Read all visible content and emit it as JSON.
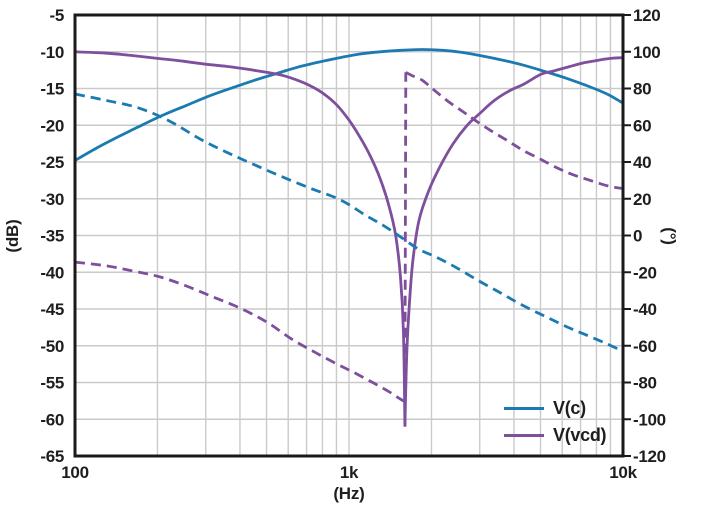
{
  "colors": {
    "blue": "#1b7ab1",
    "purple": "#7d4f9d",
    "grid": "#cacaca",
    "axis": "#1a1a1c",
    "text": "#1e1e20",
    "background": "#ffffff"
  },
  "legend": {
    "items": [
      {
        "label": "V(c)",
        "color": "#1b7ab1"
      },
      {
        "label": "V(vcd)",
        "color": "#7d4f9d"
      }
    ]
  },
  "chart_data": {
    "type": "line",
    "title": "",
    "grid": true,
    "legend_position": "lower right",
    "x_axis": {
      "label": "(Hz)",
      "scale": "log",
      "range": [
        100,
        10000
      ],
      "ticks": [
        100,
        1000,
        10000
      ],
      "tick_labels": [
        "100",
        "1k",
        "10k"
      ]
    },
    "y_left": {
      "label": "(dB)",
      "range": [
        -65,
        -5
      ],
      "ticks": [
        -5,
        -10,
        -15,
        -20,
        -25,
        -30,
        -35,
        -40,
        -45,
        -50,
        -55,
        -60,
        -65
      ],
      "tick_labels": [
        "-5",
        "-10",
        "-15",
        "-20",
        "-25",
        "-30",
        "-35",
        "-40",
        "-45",
        "-50",
        "-55",
        "-60",
        "-65"
      ]
    },
    "y_right": {
      "label": "(°)",
      "range": [
        -120,
        120
      ],
      "ticks": [
        120,
        100,
        80,
        60,
        40,
        20,
        0,
        -20,
        -40,
        -60,
        -80,
        -100,
        -120
      ],
      "tick_labels": [
        "120",
        "100",
        "80",
        "60",
        "40",
        "20",
        "0",
        "-20",
        "-40",
        "-60",
        "-80",
        "-100",
        "-120"
      ]
    },
    "series": [
      {
        "name": "V(c) magnitude",
        "legend": "V(c)",
        "axis": "left",
        "style": "solid",
        "color": "#1b7ab1",
        "segments": [
          [
            [
              100,
              -24.8
            ],
            [
              120,
              -23.1
            ],
            [
              145,
              -21.5
            ],
            [
              175,
              -20.0
            ],
            [
              210,
              -18.6
            ],
            [
              255,
              -17.3
            ],
            [
              310,
              -16.0
            ],
            [
              375,
              -14.9
            ],
            [
              450,
              -13.9
            ],
            [
              550,
              -12.9
            ],
            [
              650,
              -12.1
            ],
            [
              780,
              -11.4
            ],
            [
              930,
              -10.8
            ],
            [
              1100,
              -10.3
            ],
            [
              1300,
              -10.0
            ],
            [
              1550,
              -9.8
            ],
            [
              1850,
              -9.7
            ],
            [
              2200,
              -9.8
            ],
            [
              2600,
              -10.1
            ],
            [
              3100,
              -10.6
            ],
            [
              3700,
              -11.2
            ],
            [
              4400,
              -11.9
            ],
            [
              5200,
              -12.7
            ],
            [
              6200,
              -13.6
            ],
            [
              7600,
              -14.8
            ],
            [
              8800,
              -15.8
            ],
            [
              10000,
              -17.0
            ]
          ]
        ]
      },
      {
        "name": "V(vcd) magnitude",
        "legend": "V(vcd)",
        "axis": "left",
        "style": "solid",
        "color": "#7d4f9d",
        "segments": [
          [
            [
              100,
              -10.0
            ],
            [
              130,
              -10.2
            ],
            [
              160,
              -10.5
            ],
            [
              200,
              -10.9
            ],
            [
              250,
              -11.3
            ],
            [
              300,
              -11.7
            ],
            [
              360,
              -12.0
            ],
            [
              430,
              -12.4
            ],
            [
              500,
              -12.8
            ],
            [
              570,
              -13.2
            ],
            [
              640,
              -13.8
            ],
            [
              720,
              -14.6
            ],
            [
              800,
              -15.6
            ],
            [
              900,
              -17.2
            ],
            [
              1000,
              -19.3
            ],
            [
              1100,
              -21.7
            ],
            [
              1200,
              -24.3
            ],
            [
              1300,
              -27.3
            ],
            [
              1400,
              -31.0
            ],
            [
              1480,
              -35.0
            ],
            [
              1540,
              -40.5
            ],
            [
              1580,
              -48.0
            ],
            [
              1600,
              -61.0
            ]
          ],
          [
            [
              1600,
              -61.0
            ],
            [
              1625,
              -51.0
            ],
            [
              1660,
              -44.5
            ],
            [
              1710,
              -38.5
            ],
            [
              1800,
              -33.0
            ],
            [
              1950,
              -29.0
            ],
            [
              2150,
              -25.6
            ],
            [
              2400,
              -22.5
            ],
            [
              2700,
              -20.0
            ],
            [
              3000,
              -18.4
            ],
            [
              3400,
              -16.6
            ],
            [
              3900,
              -15.2
            ],
            [
              4300,
              -14.5
            ],
            [
              5000,
              -13.1
            ],
            [
              5600,
              -12.6
            ],
            [
              6400,
              -12.0
            ],
            [
              7200,
              -11.5
            ],
            [
              8000,
              -11.2
            ],
            [
              9000,
              -10.9
            ],
            [
              10000,
              -10.8
            ]
          ]
        ]
      },
      {
        "name": "V(c) phase",
        "axis": "right",
        "style": "dashed",
        "color": "#1b7ab1",
        "segments": [
          [
            [
              100,
              77
            ],
            [
              130,
              73.5
            ],
            [
              170,
              69.5
            ],
            [
              220,
              62.5
            ],
            [
              290,
              52
            ],
            [
              380,
              43.5
            ],
            [
              515,
              34.8
            ],
            [
              700,
              26.5
            ],
            [
              930,
              19.4
            ],
            [
              1150,
              11
            ],
            [
              1350,
              5
            ],
            [
              1550,
              -1
            ],
            [
              1800,
              -7.5
            ],
            [
              2100,
              -12
            ],
            [
              2500,
              -18
            ],
            [
              3000,
              -25
            ],
            [
              3600,
              -31.5
            ],
            [
              4300,
              -38
            ],
            [
              5200,
              -44
            ],
            [
              6200,
              -49.5
            ],
            [
              7300,
              -54
            ],
            [
              8600,
              -58.5
            ],
            [
              10000,
              -63
            ]
          ]
        ]
      },
      {
        "name": "V(vcd) phase",
        "axis": "right",
        "style": "dashed",
        "color": "#7d4f9d",
        "segments": [
          [
            [
              100,
              -14.5
            ],
            [
              130,
              -16.5
            ],
            [
              165,
              -19.5
            ],
            [
              205,
              -22.6
            ],
            [
              255,
              -27.5
            ],
            [
              320,
              -33.5
            ],
            [
              400,
              -39.5
            ],
            [
              500,
              -47
            ],
            [
              620,
              -56.5
            ],
            [
              750,
              -63.5
            ],
            [
              900,
              -69.8
            ],
            [
              1050,
              -74.8
            ],
            [
              1220,
              -80
            ],
            [
              1400,
              -85
            ],
            [
              1520,
              -88.5
            ],
            [
              1600,
              -90.5
            ]
          ],
          [
            [
              1600,
              -90.5
            ],
            [
              1612,
              88.8
            ]
          ],
          [
            [
              1612,
              88.8
            ],
            [
              1700,
              87
            ],
            [
              1850,
              84.5
            ],
            [
              2050,
              79
            ],
            [
              2300,
              73
            ],
            [
              2600,
              67.5
            ],
            [
              2900,
              62.5
            ],
            [
              3300,
              57
            ],
            [
              3800,
              51.5
            ],
            [
              4300,
              46.5
            ],
            [
              5000,
              41.5
            ],
            [
              5800,
              36.5
            ],
            [
              6600,
              33
            ],
            [
              7600,
              30
            ],
            [
              8800,
              27
            ],
            [
              10000,
              25.5
            ]
          ]
        ]
      }
    ]
  }
}
